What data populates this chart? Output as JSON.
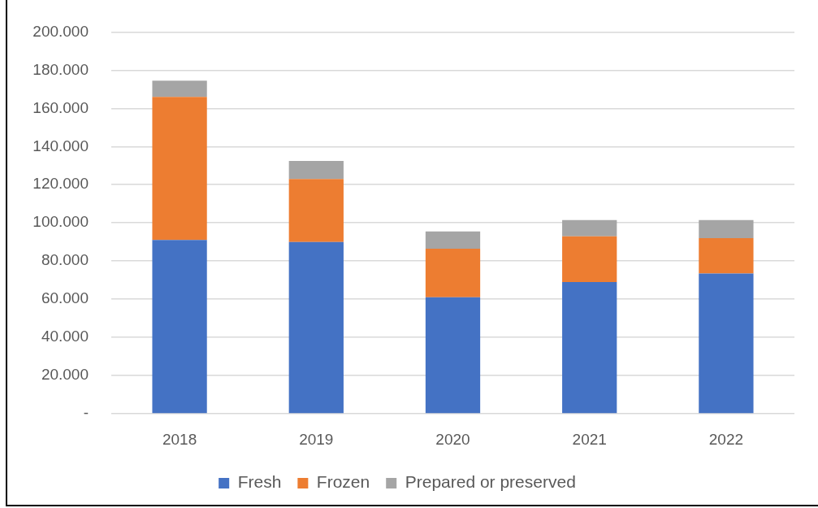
{
  "chart_data": {
    "type": "bar",
    "stacked": true,
    "categories": [
      "2018",
      "2019",
      "2020",
      "2021",
      "2022"
    ],
    "series": [
      {
        "name": "Fresh",
        "color": "#4472c4",
        "values": [
          91000,
          90000,
          61000,
          69000,
          73500
        ]
      },
      {
        "name": "Frozen",
        "color": "#ed7d31",
        "values": [
          75000,
          33000,
          25500,
          24000,
          18500
        ]
      },
      {
        "name": "Prepared or preserved",
        "color": "#a5a5a5",
        "values": [
          8500,
          9500,
          9000,
          8500,
          9500
        ]
      }
    ],
    "ylim": [
      0,
      200000
    ],
    "yticks": [
      {
        "value": 0,
        "label": "-"
      },
      {
        "value": 20000,
        "label": "20.000"
      },
      {
        "value": 40000,
        "label": "40.000"
      },
      {
        "value": 60000,
        "label": "60.000"
      },
      {
        "value": 80000,
        "label": "80.000"
      },
      {
        "value": 100000,
        "label": "100.000"
      },
      {
        "value": 120000,
        "label": "120.000"
      },
      {
        "value": 140000,
        "label": "140.000"
      },
      {
        "value": 160000,
        "label": "160.000"
      },
      {
        "value": 180000,
        "label": "180.000"
      },
      {
        "value": 200000,
        "label": "200.000"
      }
    ],
    "grid": "y",
    "legend": "bottom"
  }
}
